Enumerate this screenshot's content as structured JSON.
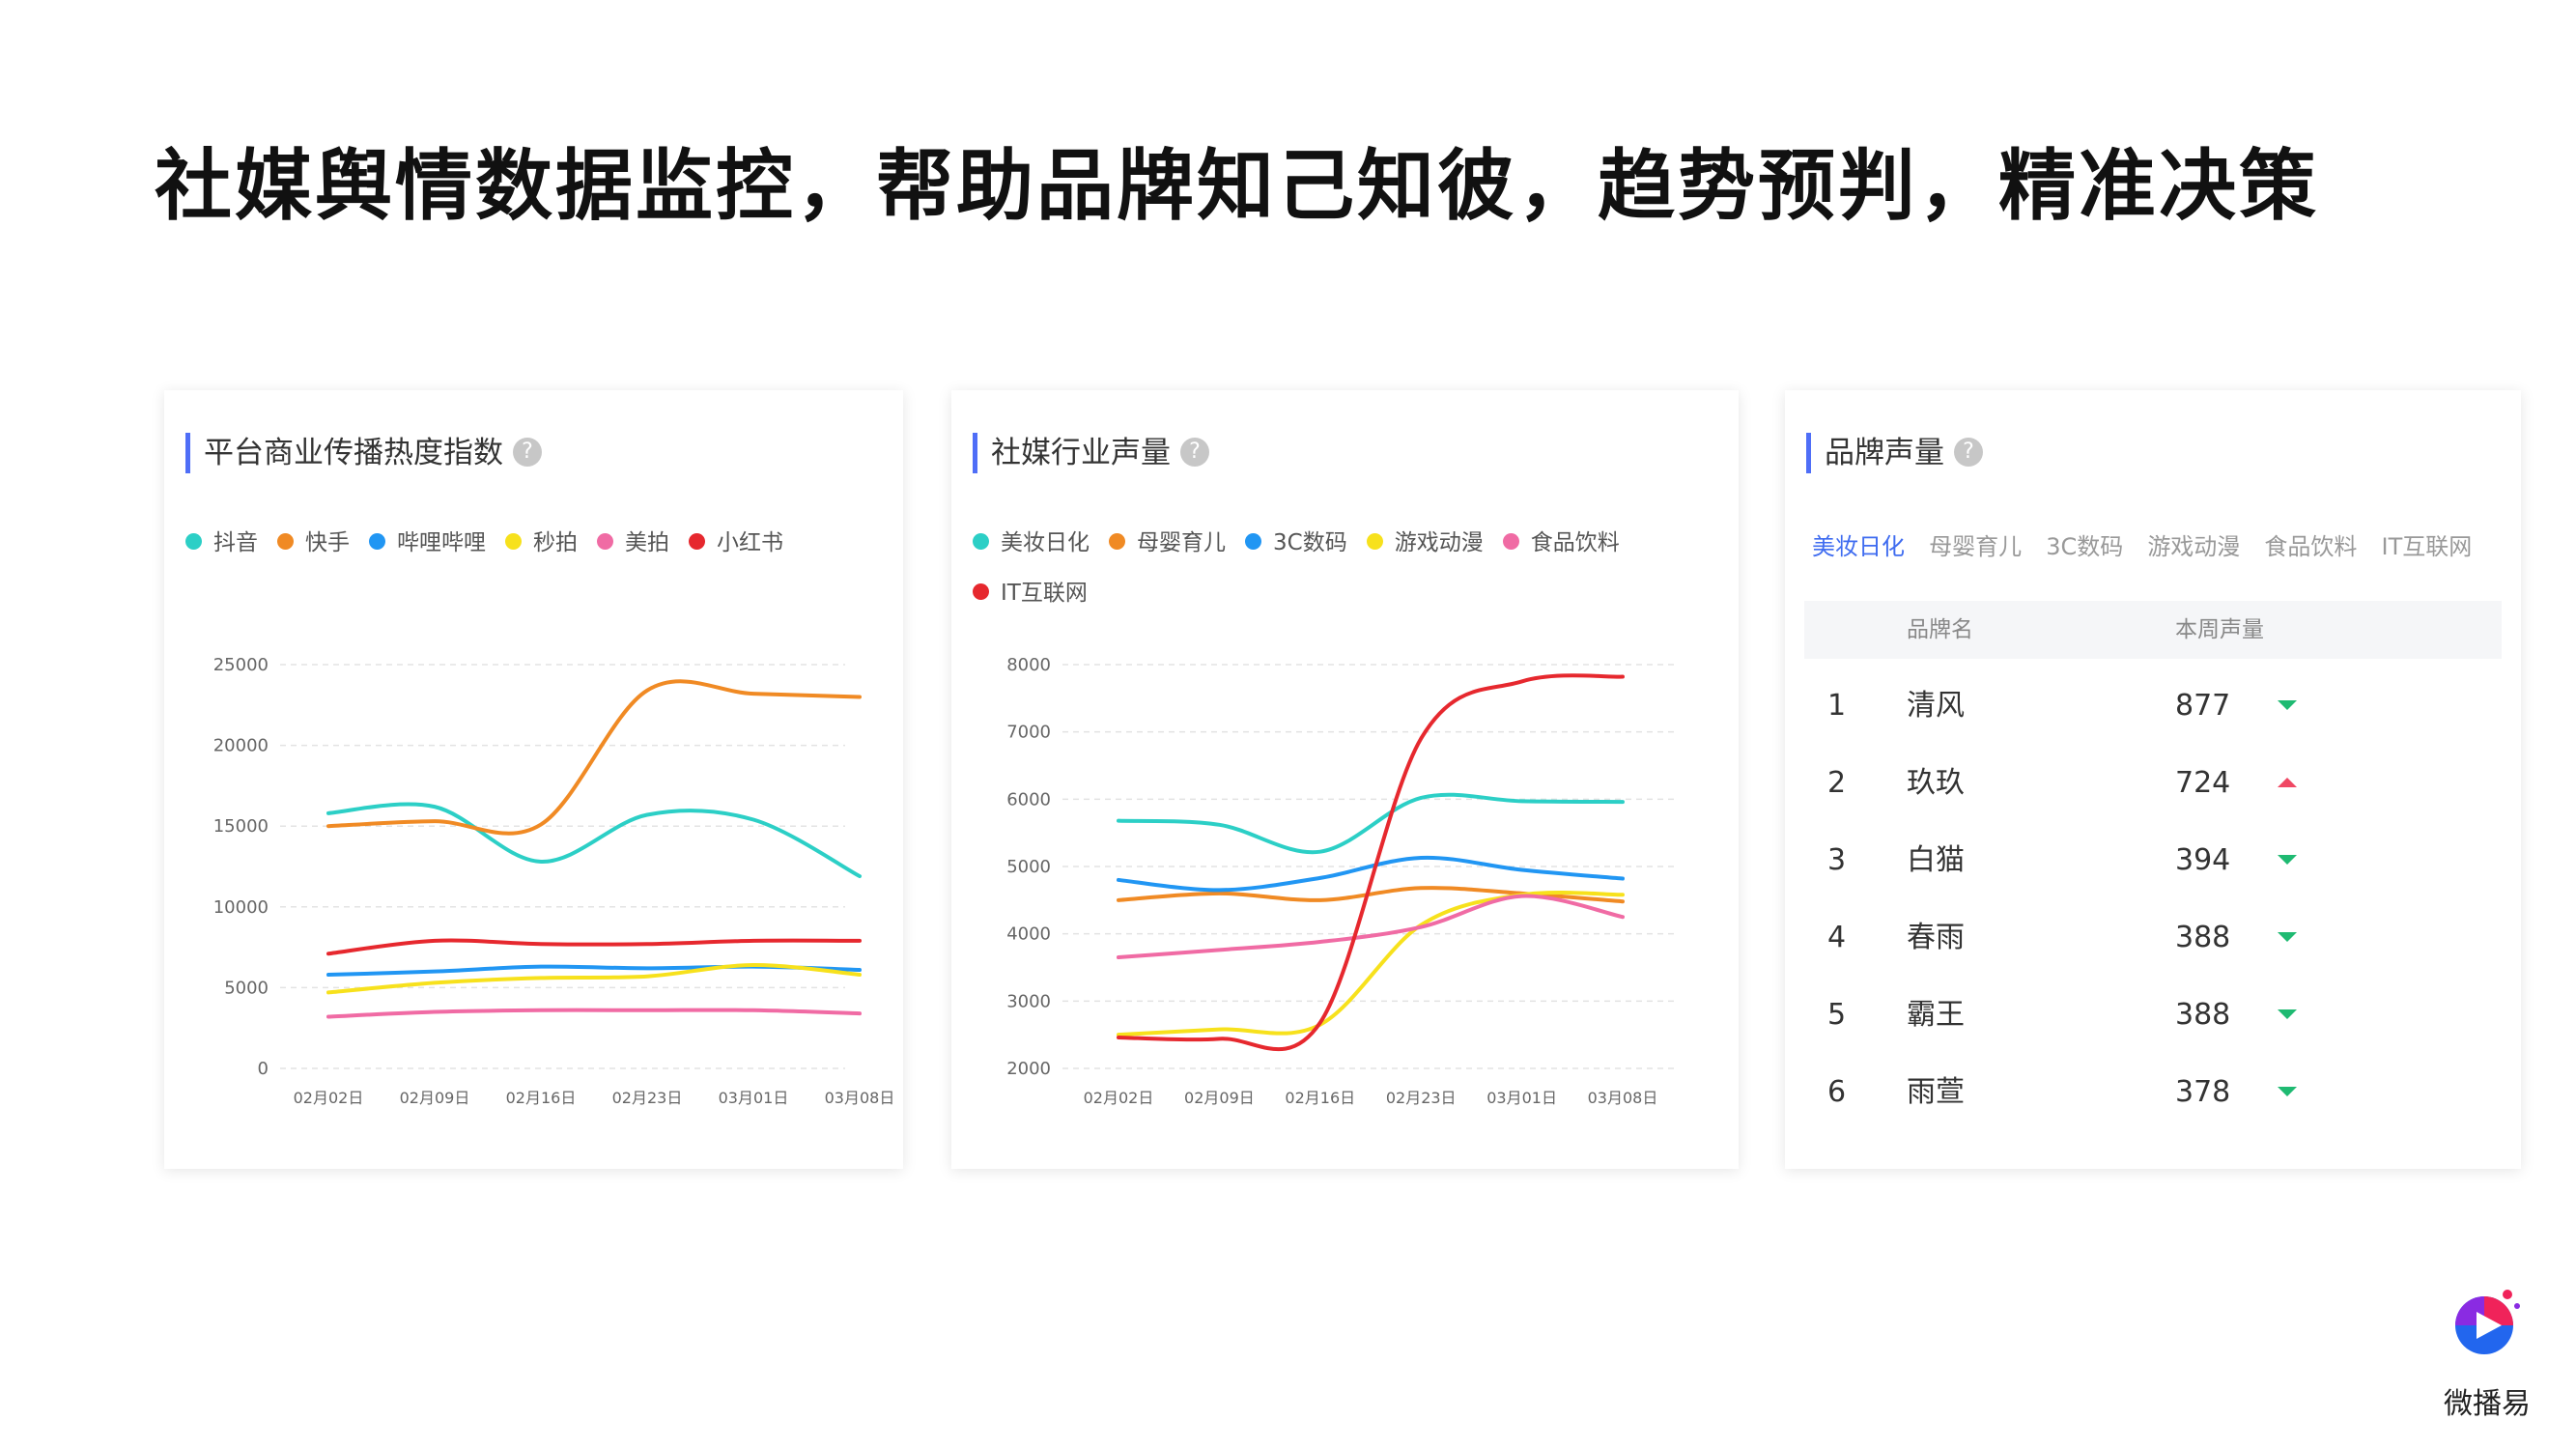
{
  "headline": "社媒舆情数据监控，帮助品牌知己知彼，趋势预判，精准决策",
  "help_glyph": "?",
  "brand": {
    "logo_text": "微播易",
    "colors": {
      "purple": "#8a2be2",
      "blue": "#2266ee",
      "red": "#f0235a"
    }
  },
  "chart_data": [
    {
      "type": "line",
      "title": "平台商业传播热度指数",
      "categories": [
        "02月02日",
        "02月09日",
        "02月16日",
        "02月23日",
        "03月01日",
        "03月08日"
      ],
      "ylim": [
        0,
        25000
      ],
      "yticks": [
        0,
        5000,
        10000,
        15000,
        20000,
        25000
      ],
      "grid": true,
      "legend_position": "top",
      "series": [
        {
          "name": "抖音",
          "color": "#2ccfc6",
          "values": [
            15800,
            16200,
            12800,
            15700,
            15400,
            11900
          ]
        },
        {
          "name": "快手",
          "color": "#f08a24",
          "values": [
            15000,
            15300,
            15100,
            23400,
            23200,
            23000
          ]
        },
        {
          "name": "哔哩哔哩",
          "color": "#2196f3",
          "values": [
            5800,
            6000,
            6300,
            6200,
            6300,
            6100
          ]
        },
        {
          "name": "秒拍",
          "color": "#f7e11c",
          "values": [
            4700,
            5300,
            5600,
            5700,
            6400,
            5800
          ]
        },
        {
          "name": "美拍",
          "color": "#f06ba4",
          "values": [
            3200,
            3500,
            3600,
            3600,
            3600,
            3400
          ]
        },
        {
          "name": "小红书",
          "color": "#e6282e",
          "values": [
            7100,
            7900,
            7700,
            7700,
            7900,
            7900
          ]
        }
      ]
    },
    {
      "type": "line",
      "title": "社媒行业声量",
      "categories": [
        "02月02日",
        "02月09日",
        "02月16日",
        "02月23日",
        "03月01日",
        "03月08日"
      ],
      "ylim": [
        2000,
        8000
      ],
      "yticks": [
        2000,
        3000,
        4000,
        5000,
        6000,
        7000,
        8000
      ],
      "grid": true,
      "legend_position": "top",
      "series": [
        {
          "name": "美妆日化",
          "color": "#2ccfc6",
          "values": [
            5680,
            5620,
            5220,
            6020,
            5970,
            5960
          ]
        },
        {
          "name": "母婴育儿",
          "color": "#f08a24",
          "values": [
            4500,
            4600,
            4500,
            4680,
            4600,
            4480
          ]
        },
        {
          "name": "3C数码",
          "color": "#2196f3",
          "values": [
            4800,
            4650,
            4830,
            5130,
            4950,
            4820
          ]
        },
        {
          "name": "游戏动漫",
          "color": "#f7e11c",
          "values": [
            2500,
            2580,
            2650,
            4130,
            4580,
            4580
          ]
        },
        {
          "name": "食品饮料",
          "color": "#f06ba4",
          "values": [
            3650,
            3760,
            3880,
            4100,
            4560,
            4250
          ]
        },
        {
          "name": "IT互联网",
          "color": "#e6282e",
          "values": [
            2460,
            2440,
            2680,
            6900,
            7750,
            7820
          ]
        }
      ]
    }
  ],
  "ranking": {
    "title": "品牌声量",
    "tabs": [
      "美妆日化",
      "母婴育儿",
      "3C数码",
      "游戏动漫",
      "食品饮料",
      "IT互联网"
    ],
    "active_tab": "美妆日化",
    "columns": [
      "品牌名",
      "本周声量"
    ],
    "rows": [
      {
        "rank": "1",
        "name": "清风",
        "value": "877",
        "trend": "down"
      },
      {
        "rank": "2",
        "name": "玖玖",
        "value": "724",
        "trend": "up"
      },
      {
        "rank": "3",
        "name": "白猫",
        "value": "394",
        "trend": "down"
      },
      {
        "rank": "4",
        "name": "春雨",
        "value": "388",
        "trend": "down"
      },
      {
        "rank": "5",
        "name": "霸王",
        "value": "388",
        "trend": "down"
      },
      {
        "rank": "6",
        "name": "雨萱",
        "value": "378",
        "trend": "down"
      }
    ]
  }
}
